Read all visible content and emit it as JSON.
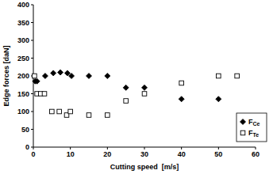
{
  "chart_data": {
    "type": "scatter",
    "x_label": "Cutting speed  [m/s]",
    "y_label": "Edge forces [daN]",
    "xlim": [
      0,
      60
    ],
    "xticks": [
      0,
      10,
      20,
      30,
      40,
      50,
      60
    ],
    "ylim": [
      0,
      400
    ],
    "yticks": [
      0,
      50,
      100,
      150,
      200,
      250,
      300,
      350,
      400
    ],
    "grid": false,
    "legend": "bottom-right",
    "series": [
      {
        "name": "FCe",
        "color": "#000000",
        "marker": "diamond",
        "x": [
          0.5,
          1,
          3.2,
          5.4,
          7.3,
          9.2,
          10.3,
          15,
          20,
          25,
          30,
          40,
          50
        ],
        "values": [
          185,
          185,
          200,
          208,
          210,
          208,
          200,
          200,
          200,
          167,
          167,
          135,
          135
        ]
      },
      {
        "name": "FTe",
        "color": "#000000",
        "marker": "open-square",
        "x": [
          0.3,
          1,
          2,
          3,
          5,
          7,
          9,
          10,
          15,
          20,
          25,
          30,
          40,
          50,
          55
        ],
        "values": [
          200,
          150,
          150,
          150,
          100,
          100,
          90,
          100,
          90,
          90,
          130,
          150,
          180,
          200,
          200
        ]
      }
    ]
  }
}
